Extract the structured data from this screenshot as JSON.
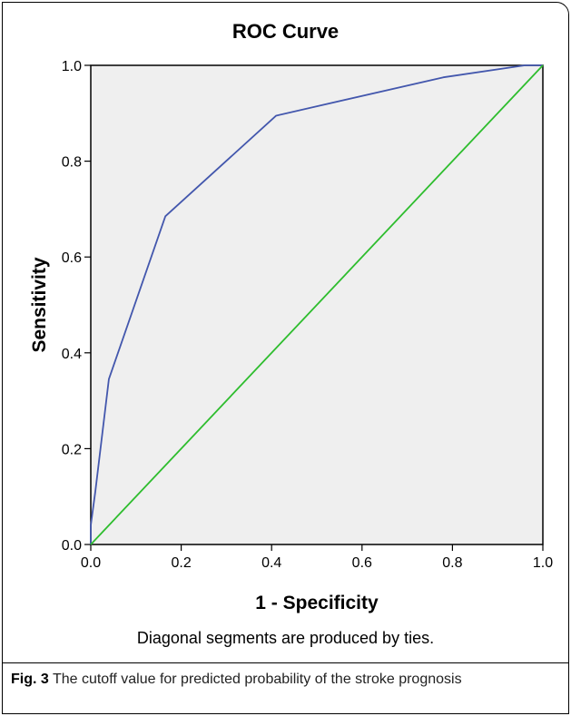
{
  "chart_data": {
    "type": "line",
    "title": "ROC Curve",
    "xlabel": "1 - Specificity",
    "ylabel": "Sensitivity",
    "xlim": [
      0.0,
      1.0
    ],
    "ylim": [
      0.0,
      1.0
    ],
    "x_ticks": [
      "0.0",
      "0.2",
      "0.4",
      "0.6",
      "0.8",
      "1.0"
    ],
    "y_ticks": [
      "0.0",
      "0.2",
      "0.4",
      "0.6",
      "0.8",
      "1.0"
    ],
    "grid": false,
    "background_color": "#efefef",
    "series": [
      {
        "color": "#4357ad",
        "points": [
          [
            0.0,
            0.0
          ],
          [
            0.0,
            0.04
          ],
          [
            0.01,
            0.11
          ],
          [
            0.04,
            0.345
          ],
          [
            0.165,
            0.685
          ],
          [
            0.41,
            0.895
          ],
          [
            0.78,
            0.975
          ],
          [
            0.96,
            1.0
          ],
          [
            1.0,
            1.0
          ]
        ]
      },
      {
        "color": "#2ebd2e",
        "points": [
          [
            0.0,
            0.0
          ],
          [
            1.0,
            1.0
          ]
        ]
      }
    ],
    "note": "Diagonal segments are produced by ties."
  },
  "caption": {
    "label": "Fig. 3",
    "text": " The cutoff value for predicted probability of the stroke prognosis"
  }
}
